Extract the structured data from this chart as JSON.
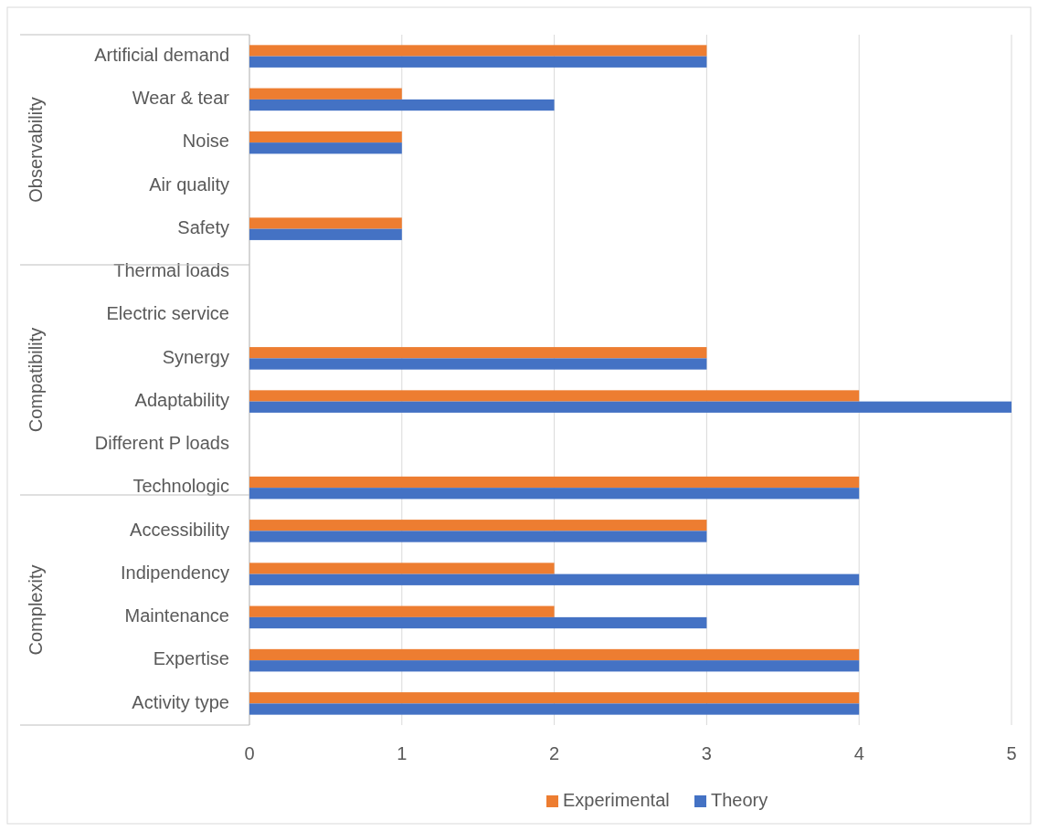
{
  "chart_data": {
    "type": "bar",
    "orientation": "horizontal",
    "categories": [
      "Artificial demand",
      "Wear & tear",
      "Noise",
      "Air quality",
      "Safety",
      "Thermal loads",
      "Electric service",
      "Synergy",
      "Adaptability",
      "Different P loads",
      "Technologic",
      "Accessibility",
      "Indipendency",
      "Maintenance",
      "Expertise",
      "Activity type"
    ],
    "series": [
      {
        "name": "Experimental",
        "color": "#ed7d31",
        "values": [
          3,
          1,
          1,
          0,
          1,
          0,
          0,
          3,
          4,
          0,
          4,
          3,
          2,
          2,
          4,
          4
        ]
      },
      {
        "name": "Theory",
        "color": "#4472c4",
        "values": [
          3,
          2,
          1,
          0,
          1,
          0,
          0,
          3,
          5,
          0,
          4,
          3,
          4,
          3,
          4,
          4
        ]
      }
    ],
    "xlim": [
      0,
      5
    ],
    "xticks": [
      0,
      1,
      2,
      3,
      4,
      5
    ],
    "grid": "x",
    "legend": "bottom",
    "annotations": [
      "Observability",
      "Compatibility",
      "Complexity"
    ]
  }
}
